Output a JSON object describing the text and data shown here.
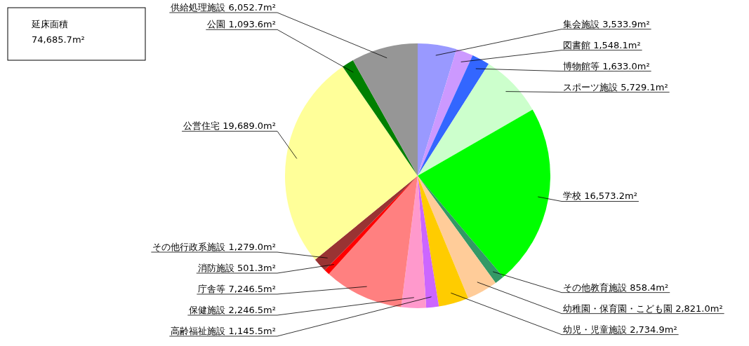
{
  "chart_data": {
    "type": "pie",
    "categories": [
      "集会施設",
      "図書館",
      "博物館等",
      "スポーツ施設",
      "学校",
      "その他教育施設",
      "幼稚園・保育園・こども園",
      "幼児・児童施設",
      "高齢福祉施設",
      "保健施設",
      "庁舎等",
      "消防施設",
      "その他行政系施設",
      "公営住宅",
      "公園",
      "供給処理施設"
    ],
    "values": [
      3533.9,
      1548.1,
      1633.0,
      5729.1,
      16573.2,
      858.4,
      2821.0,
      2734.9,
      1145.5,
      2246.5,
      7246.5,
      501.3,
      1279.0,
      19689.0,
      1093.6,
      6052.7
    ],
    "value_labels": [
      "3,533.9m²",
      "1,548.1m²",
      "1,633.0m²",
      "5,729.1m²",
      "16,573.2m²",
      "858.4m²",
      "2,821.0m²",
      "2,734.9m²",
      "1,145.5m²",
      "2,246.5m²",
      "7,246.5m²",
      "501.3m²",
      "1,279.0m²",
      "19,689.0m²",
      "1,093.6m²",
      "6,052.7m²"
    ],
    "colors": [
      "#9999ff",
      "#cc99ff",
      "#3366ff",
      "#ccffcc",
      "#00ff00",
      "#339966",
      "#ffcc99",
      "#ffcc00",
      "#cc66ff",
      "#ff99cc",
      "#ff8080",
      "#ff0000",
      "#993333",
      "#ffff99",
      "#008000",
      "#969696"
    ],
    "annotations": [
      "延床面積",
      "74,685.7m²"
    ]
  }
}
